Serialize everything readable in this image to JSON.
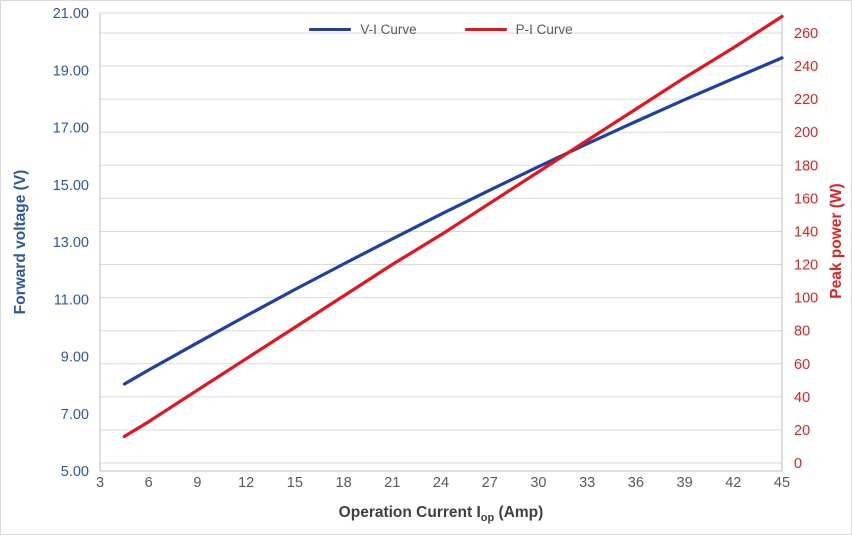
{
  "chart_data": {
    "type": "line",
    "title": "",
    "x": [
      4.5,
      6,
      9,
      12,
      15,
      18,
      21,
      24,
      27,
      30,
      33,
      36,
      39,
      42,
      45
    ],
    "series": [
      {
        "name": "V-I Curve",
        "axis": "left",
        "color": "#1F3FA8",
        "values": [
          8.04,
          8.53,
          9.48,
          10.42,
          11.34,
          12.23,
          13.11,
          13.97,
          14.81,
          15.63,
          16.43,
          17.21,
          17.97,
          18.71,
          19.43
        ]
      },
      {
        "name": "P-I Curve",
        "axis": "right",
        "color": "#E8121A",
        "values": [
          16,
          25,
          44,
          63,
          82,
          101,
          120,
          138,
          157,
          176,
          195,
          214,
          233,
          251,
          270
        ]
      }
    ],
    "x_axis": {
      "title_main": "Operation Current I",
      "title_sub": "op",
      "title_suffix": " (Amp)",
      "min": 3,
      "max": 45,
      "tick_labels": [
        "3",
        "6",
        "9",
        "12",
        "15",
        "18",
        "21",
        "24",
        "27",
        "30",
        "33",
        "36",
        "39",
        "42",
        "45"
      ],
      "tick_color": "#595959",
      "title_color": "#3F3F3F"
    },
    "left_axis": {
      "title": "Forward voltage (V)",
      "min": 5,
      "max": 21,
      "tick_labels": [
        "5.00",
        "7.00",
        "9.00",
        "11.00",
        "13.00",
        "15.00",
        "17.00",
        "19.00",
        "21.00"
      ],
      "color": "#2E55A5"
    },
    "right_axis": {
      "title": "Peak power (W)",
      "min": 0,
      "max": 260,
      "tick_labels": [
        "0",
        "20",
        "40",
        "60",
        "80",
        "100",
        "120",
        "140",
        "160",
        "180",
        "200",
        "220",
        "240",
        "260"
      ],
      "color": "#E22222"
    },
    "grid": "horizontal",
    "gridline_color": "#D9D9D9",
    "axis_line_color": "#BFBFBF",
    "legend_position": "top-center"
  }
}
